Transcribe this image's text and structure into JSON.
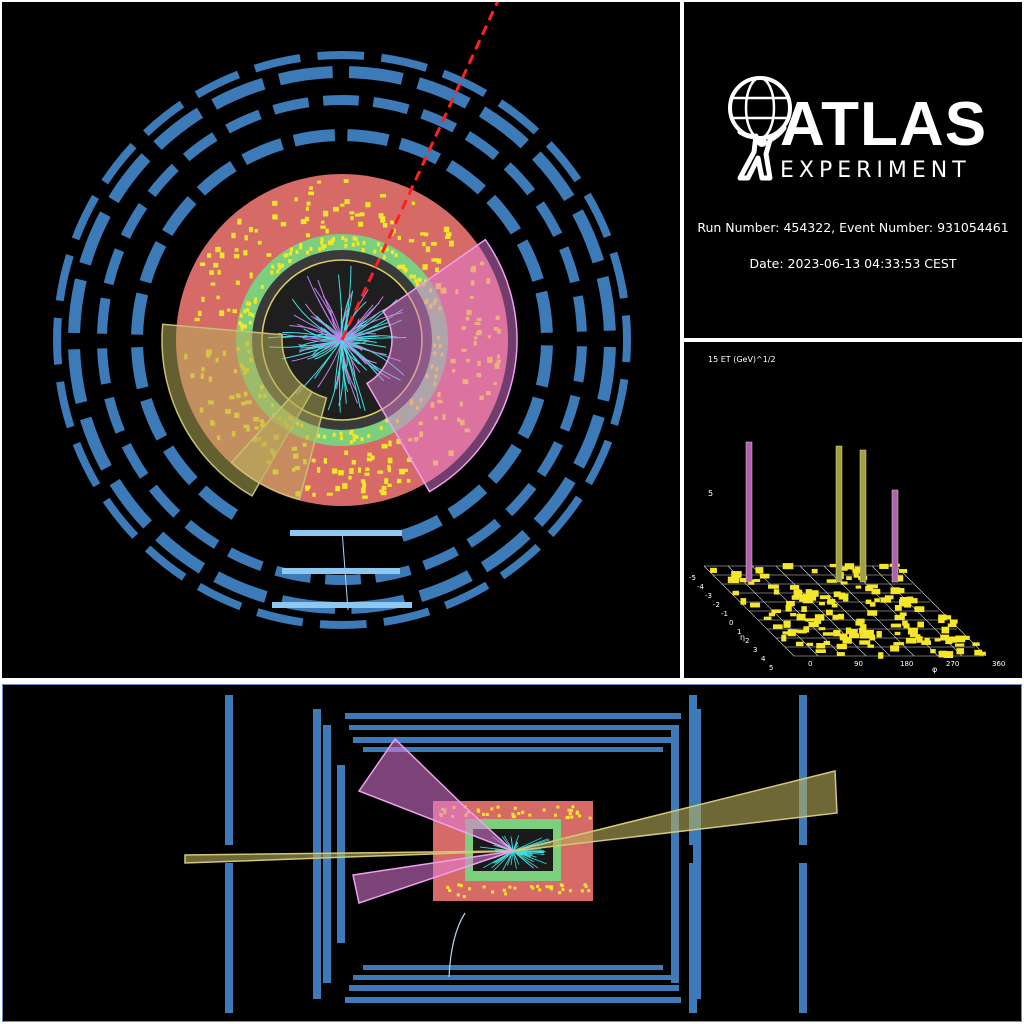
{
  "branding": {
    "title": "ATLAS",
    "subtitle": "EXPERIMENT",
    "logo": "atlas-figure-globe-logo"
  },
  "event": {
    "run_event": "Run Number: 454322, Event Number: 931054461",
    "date": "Date: 2023-06-13 04:33:53 CEST"
  },
  "lego_plot": {
    "scale_label": "15 ET (GeV)^1/2",
    "z_tick": "5",
    "eta_label": "η",
    "phi_label": "φ",
    "eta_ticks": [
      "-5",
      "-4",
      "-3",
      "-2",
      "-1",
      "0",
      "1",
      "2",
      "3",
      "4",
      "5"
    ],
    "phi_ticks": [
      "0",
      "90",
      "180",
      "270",
      "360"
    ]
  },
  "colors": {
    "background": "#000000",
    "muon_chambers": "#3d7ab8",
    "em_calorimeter": "#7ccf7c",
    "had_calorimeter": "#d66a66",
    "energy_deposit": "#f5e62a",
    "tracks": "#3fe0e0",
    "jet_pink": "#e07ad8",
    "jet_olive": "#b5ad5a",
    "missing_et": "#ff2020"
  }
}
